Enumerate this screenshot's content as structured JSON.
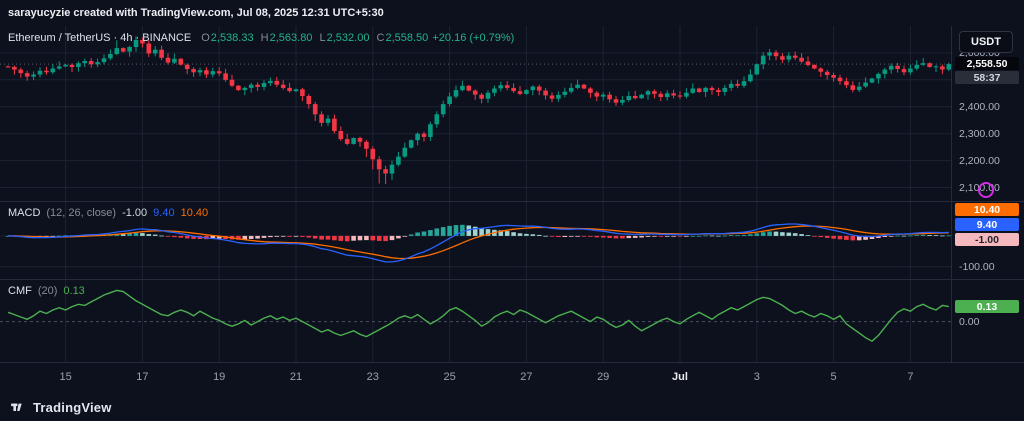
{
  "attribution": "sarayucyzie created with TradingView.com, Jul 08, 2025 12:31 UTC+5:30",
  "symbol_bar": {
    "title": "Ethereum / TetherUS · 4h · BINANCE",
    "ohlc": {
      "o_label": "O",
      "o": "2,538.33",
      "h_label": "H",
      "h": "2,563.80",
      "l_label": "L",
      "l": "2,532.00",
      "c_label": "C",
      "c": "2,558.50",
      "change": "+20.16 (+0.79%)"
    },
    "currency": "USDT"
  },
  "price_scale": {
    "last_price": "2,558.50",
    "countdown": "58:37"
  },
  "macd": {
    "title": "MACD",
    "params": "(12, 26, close)",
    "hist_value": "-1.00",
    "macd_value": "9.40",
    "signal_value": "10.40",
    "axis_label": "-100.00"
  },
  "cmf": {
    "title": "CMF",
    "params": "(20)",
    "value": "0.13",
    "badge": "0.13",
    "axis_label": "0.00"
  },
  "footer": {
    "brand": "TradingView"
  },
  "colors": {
    "up": "#089981",
    "down": "#f23645",
    "legend_up": "#23b38a",
    "macd_line": "#2962ff",
    "signal_line": "#ff6d00",
    "hist_up": "#26a69a",
    "hist_up_weak": "#9fd4cf",
    "hist_down": "#f23645",
    "hist_down_weak": "#f5b8bd",
    "hist_legend": "#d6d9e0",
    "cmf": "#4caf50",
    "accent_magenta": "#d32ce6"
  },
  "chart_data": {
    "type": "candlestick",
    "title": "Ethereum / TetherUS 4h BINANCE with MACD(12,26,9) and CMF(20) panels",
    "interval": "4h",
    "legend_position": "top-left",
    "grid": true,
    "x_ticks": [
      {
        "text": "15",
        "i": 9
      },
      {
        "text": "17",
        "i": 21
      },
      {
        "text": "19",
        "i": 33
      },
      {
        "text": "21",
        "i": 45
      },
      {
        "text": "23",
        "i": 57
      },
      {
        "text": "25",
        "i": 69
      },
      {
        "text": "27",
        "i": 81
      },
      {
        "text": "29",
        "i": 93
      },
      {
        "text": "Jul",
        "i": 105,
        "major": true
      },
      {
        "text": "3",
        "i": 117
      },
      {
        "text": "5",
        "i": 129
      },
      {
        "text": "7",
        "i": 141
      }
    ],
    "price_axis": {
      "min": 2050,
      "max": 2700,
      "gridlines": [
        2600,
        2500,
        2400,
        2300,
        2200,
        2100
      ],
      "labels": [
        {
          "text": "2,600.00",
          "price": 2600
        },
        {
          "text": "2,400.00",
          "price": 2400
        },
        {
          "text": "2,300.00",
          "price": 2300
        },
        {
          "text": "2,200.00",
          "price": 2200
        },
        {
          "text": "2,100.00",
          "price": 2100
        }
      ]
    },
    "candles": {
      "first_open": 2550,
      "closes": [
        2548,
        2538,
        2525,
        2512,
        2520,
        2534,
        2528,
        2542,
        2550,
        2556,
        2548,
        2562,
        2570,
        2558,
        2566,
        2580,
        2596,
        2618,
        2605,
        2622,
        2648,
        2635,
        2598,
        2612,
        2582,
        2564,
        2578,
        2556,
        2540,
        2528,
        2536,
        2520,
        2532,
        2524,
        2500,
        2478,
        2462,
        2470,
        2482,
        2474,
        2488,
        2496,
        2482,
        2470,
        2458,
        2465,
        2440,
        2410,
        2372,
        2340,
        2356,
        2310,
        2280,
        2262,
        2284,
        2270,
        2244,
        2205,
        2168,
        2152,
        2185,
        2215,
        2248,
        2276,
        2300,
        2288,
        2335,
        2372,
        2410,
        2438,
        2462,
        2478,
        2460,
        2445,
        2430,
        2452,
        2468,
        2480,
        2470,
        2458,
        2448,
        2462,
        2475,
        2460,
        2442,
        2430,
        2444,
        2456,
        2470,
        2482,
        2468,
        2452,
        2438,
        2445,
        2428,
        2415,
        2425,
        2440,
        2432,
        2445,
        2458,
        2448,
        2436,
        2450,
        2442,
        2438,
        2452,
        2468,
        2455,
        2470,
        2462,
        2455,
        2470,
        2485,
        2478,
        2495,
        2520,
        2558,
        2590,
        2602,
        2588,
        2575,
        2590,
        2582,
        2568,
        2555,
        2542,
        2530,
        2518,
        2508,
        2495,
        2480,
        2462,
        2475,
        2490,
        2505,
        2522,
        2538,
        2552,
        2540,
        2528,
        2542,
        2556,
        2562,
        2548,
        2550,
        2538.33,
        2558.5
      ],
      "high_wick_extra": {
        "17": 10,
        "20": 6,
        "118": 8,
        "119": 6
      },
      "low_wick_extra": {
        "48": 10,
        "56": 14,
        "57": 22,
        "58": 40,
        "59": 28,
        "60": 14
      }
    },
    "last_candle": {
      "o": 2538.33,
      "h": 2563.8,
      "l": 2532.0,
      "c": 2558.5
    },
    "macd_params": [
      12,
      26,
      9
    ],
    "macd_ylim": [
      -140,
      110
    ],
    "macd_gridlines": [
      0,
      -100
    ],
    "cmf_ylim": [
      -0.35,
      0.36
    ],
    "cmf_values": [
      0.08,
      0.06,
      0.04,
      0.02,
      0.05,
      0.09,
      0.07,
      0.1,
      0.12,
      0.1,
      0.13,
      0.15,
      0.14,
      0.17,
      0.2,
      0.23,
      0.25,
      0.27,
      0.26,
      0.22,
      0.18,
      0.15,
      0.12,
      0.09,
      0.06,
      0.05,
      0.08,
      0.1,
      0.08,
      0.05,
      0.09,
      0.06,
      0.03,
      0.01,
      -0.02,
      -0.04,
      -0.02,
      0.01,
      -0.03,
      0.0,
      0.03,
      0.05,
      0.02,
      0.04,
      0.01,
      0.03,
      0.0,
      -0.03,
      -0.06,
      -0.09,
      -0.07,
      -0.1,
      -0.12,
      -0.1,
      -0.08,
      -0.11,
      -0.13,
      -0.1,
      -0.07,
      -0.04,
      -0.01,
      0.03,
      0.05,
      0.03,
      0.06,
      0.02,
      -0.02,
      0.01,
      0.05,
      0.1,
      0.12,
      0.09,
      0.05,
      0.01,
      -0.04,
      -0.01,
      0.04,
      0.07,
      0.09,
      0.06,
      0.1,
      0.08,
      0.05,
      0.02,
      -0.01,
      0.02,
      0.05,
      0.07,
      0.09,
      0.06,
      0.03,
      0.0,
      0.04,
      0.02,
      -0.02,
      -0.05,
      -0.03,
      0.01,
      -0.04,
      -0.08,
      -0.05,
      -0.02,
      0.01,
      0.03,
      0.0,
      -0.02,
      0.02,
      0.05,
      0.08,
      0.05,
      0.02,
      0.06,
      0.09,
      0.12,
      0.1,
      0.13,
      0.16,
      0.19,
      0.21,
      0.2,
      0.17,
      0.14,
      0.1,
      0.07,
      0.09,
      0.06,
      0.04,
      0.07,
      0.05,
      0.02,
      0.05,
      -0.02,
      -0.06,
      -0.1,
      -0.14,
      -0.17,
      -0.12,
      -0.05,
      0.02,
      0.08,
      0.11,
      0.09,
      0.13,
      0.15,
      0.12,
      0.1,
      0.14,
      0.13
    ]
  }
}
